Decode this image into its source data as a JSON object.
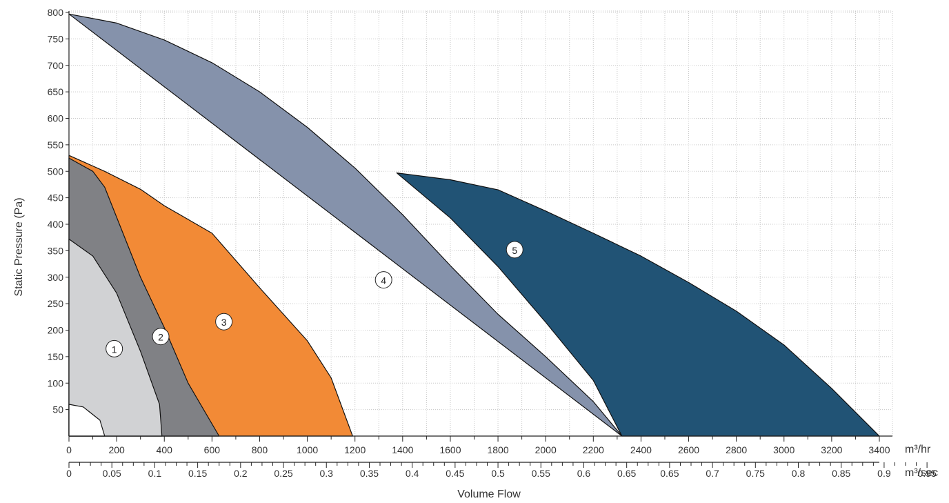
{
  "chart_data": {
    "type": "area",
    "title": "",
    "xlabel": "Volume Flow",
    "ylabel": "Static Pressure (Pa)",
    "x_unit_primary": "m³/hr",
    "x_unit_secondary": "m³/sec",
    "xlim": [
      0,
      3400
    ],
    "ylim": [
      0,
      800
    ],
    "x_ticks": [
      "0",
      "200",
      "400",
      "600",
      "800",
      "1000",
      "1200",
      "1400",
      "1600",
      "1800",
      "2000",
      "2200",
      "2400",
      "2600",
      "2800",
      "3000",
      "3200",
      "3400"
    ],
    "x2_ticks": [
      "0",
      "0.05",
      "0.1",
      "0.15",
      "0.2",
      "0.25",
      "0.3",
      "0.35",
      "0.4",
      "0.45",
      "0.5",
      "0.55",
      "0.6",
      "0.65",
      "0.65",
      "0.7",
      "0.75",
      "0.8",
      "0.85",
      "0.9",
      "0.95"
    ],
    "y_ticks": [
      "50",
      "100",
      "150",
      "200",
      "250",
      "300",
      "350",
      "400",
      "450",
      "500",
      "550",
      "600",
      "650",
      "700",
      "750",
      "800"
    ],
    "grid": true,
    "series": [
      {
        "name": "4",
        "color": "#8592ab",
        "label_at": [
          1320,
          295
        ],
        "points": [
          [
            0,
            797
          ],
          [
            200,
            780
          ],
          [
            400,
            748
          ],
          [
            600,
            705
          ],
          [
            800,
            650
          ],
          [
            1000,
            583
          ],
          [
            1200,
            506
          ],
          [
            1400,
            418
          ],
          [
            1600,
            322
          ],
          [
            1800,
            230
          ],
          [
            2000,
            150
          ],
          [
            2200,
            65
          ],
          [
            2320,
            0
          ]
        ]
      },
      {
        "name": "5",
        "color": "#215375",
        "label_at": [
          1870,
          352
        ],
        "points": [
          [
            1375,
            497
          ],
          [
            1600,
            412
          ],
          [
            1800,
            320
          ],
          [
            2000,
            215
          ],
          [
            2200,
            105
          ],
          [
            2320,
            0
          ],
          [
            3400,
            0
          ],
          [
            3200,
            90
          ],
          [
            3000,
            172
          ],
          [
            2800,
            236
          ],
          [
            2600,
            290
          ],
          [
            2400,
            340
          ],
          [
            2200,
            383
          ],
          [
            2000,
            425
          ],
          [
            1800,
            465
          ],
          [
            1600,
            484
          ],
          [
            1375,
            497
          ]
        ]
      },
      {
        "name": "3",
        "color": "#f28a36",
        "label_at": [
          650,
          216
        ],
        "points": [
          [
            0,
            530
          ],
          [
            150,
            500
          ],
          [
            300,
            466
          ],
          [
            400,
            435
          ],
          [
            600,
            383
          ],
          [
            800,
            280
          ],
          [
            1000,
            180
          ],
          [
            1100,
            110
          ],
          [
            1190,
            0
          ],
          [
            0,
            0
          ]
        ]
      },
      {
        "name": "2",
        "color": "#808185",
        "label_at": [
          385,
          188
        ],
        "points": [
          [
            0,
            525
          ],
          [
            100,
            500
          ],
          [
            150,
            470
          ],
          [
            300,
            300
          ],
          [
            400,
            205
          ],
          [
            500,
            100
          ],
          [
            630,
            0
          ],
          [
            0,
            0
          ]
        ]
      },
      {
        "name": "1",
        "color": "#d1d2d4",
        "label_at": [
          190,
          165
        ],
        "points": [
          [
            0,
            372
          ],
          [
            100,
            340
          ],
          [
            200,
            270
          ],
          [
            300,
            160
          ],
          [
            380,
            60
          ],
          [
            390,
            0
          ],
          [
            0,
            0
          ]
        ]
      },
      {
        "name": "",
        "color": "#ffffff",
        "points": [
          [
            0,
            60
          ],
          [
            60,
            55
          ],
          [
            130,
            30
          ],
          [
            150,
            0
          ],
          [
            0,
            0
          ]
        ]
      }
    ]
  }
}
